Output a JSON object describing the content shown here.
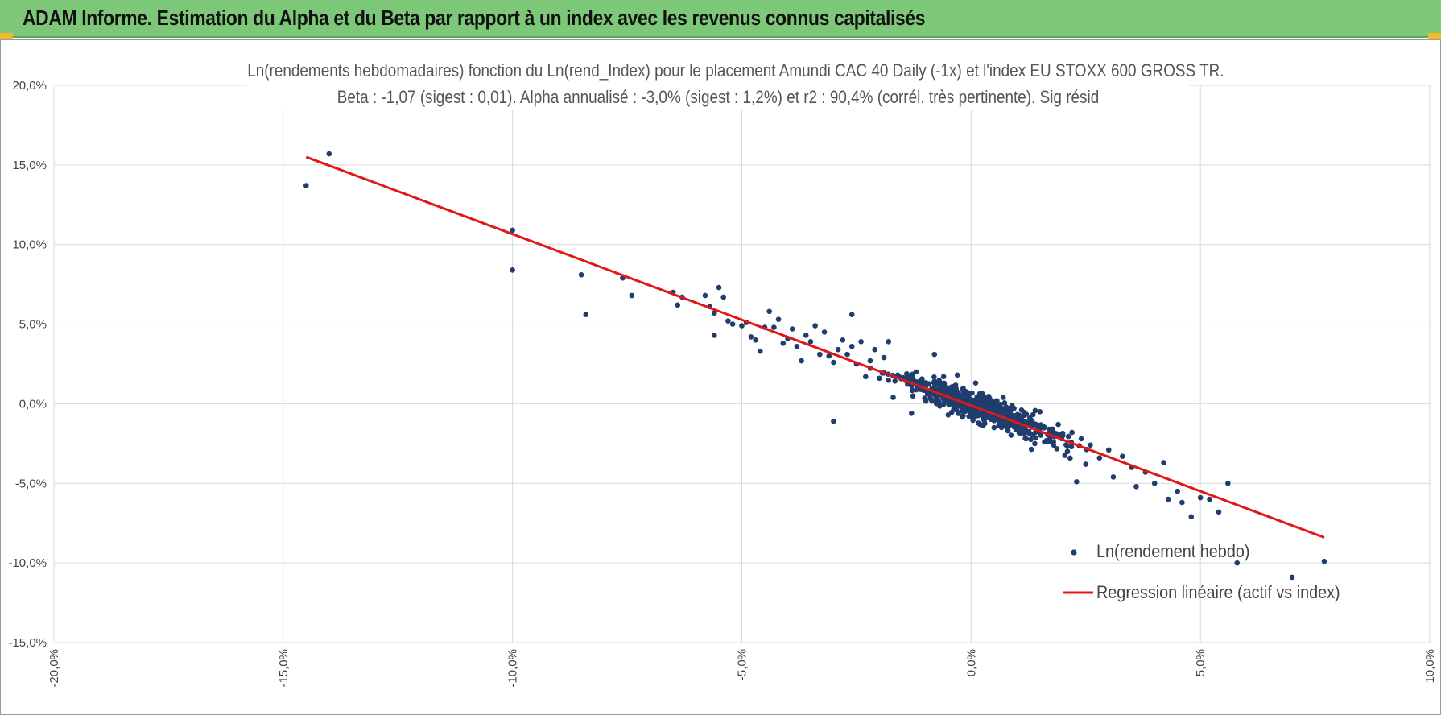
{
  "banner": {
    "title": "ADAM Informe. Estimation du Alpha et du Beta par rapport à un index avec les revenus connus capitalisés"
  },
  "colors": {
    "banner_bg": "#7dc878",
    "points": "#1f3d6d",
    "regression": "#e01818",
    "grid": "#d9d9d9"
  },
  "chart_data": {
    "type": "scatter",
    "title_line1": "Ln(rendements hebdomadaires) fonction du Ln(rend_Index) pour le placement Amundi CAC 40 Daily (-1x) et l'index EU STOXX 600 GROSS TR.",
    "title_line2": "Beta : -1,07 (sigest : 0,01). Alpha annualisé : -3,0% (sigest : 1,2%) et r2 : 90,4% (corrél. très pertinente). Sig résid",
    "xlim": [
      -20,
      10
    ],
    "ylim": [
      -15,
      20
    ],
    "x_ticks": [
      -20,
      -15,
      -10,
      -5,
      0,
      5,
      10
    ],
    "x_tick_labels": [
      "-20,0%",
      "-15,0%",
      "-10,0%",
      "-5,0%",
      "0,0%",
      "5,0%",
      "10,0%"
    ],
    "y_ticks": [
      20,
      15,
      10,
      5,
      0,
      -5,
      -10,
      -15
    ],
    "y_tick_labels": [
      "20,0%",
      "15,0%",
      "10,0%",
      "5,0%",
      "0,0%",
      "-5,0%",
      "-10,0%",
      "-15,0%"
    ],
    "grid": true,
    "legend_position": "bottom-right",
    "series": [
      {
        "name": "Ln(rendement hebdo)",
        "kind": "scatter",
        "points": [
          [
            -14.5,
            13.7
          ],
          [
            -14.0,
            15.7
          ],
          [
            -10.0,
            10.9
          ],
          [
            -10.0,
            8.4
          ],
          [
            -8.5,
            8.1
          ],
          [
            -8.4,
            5.6
          ],
          [
            -7.6,
            7.9
          ],
          [
            -7.4,
            6.8
          ],
          [
            -6.5,
            7.0
          ],
          [
            -6.4,
            6.2
          ],
          [
            -6.3,
            6.7
          ],
          [
            -5.8,
            6.8
          ],
          [
            -5.7,
            6.1
          ],
          [
            -5.6,
            5.7
          ],
          [
            -5.6,
            4.3
          ],
          [
            -5.5,
            7.3
          ],
          [
            -5.4,
            6.7
          ],
          [
            -5.3,
            5.2
          ],
          [
            -5.2,
            5.0
          ],
          [
            -5.0,
            4.9
          ],
          [
            -4.9,
            5.1
          ],
          [
            -4.8,
            4.2
          ],
          [
            -4.7,
            4.0
          ],
          [
            -4.6,
            3.3
          ],
          [
            -4.5,
            4.8
          ],
          [
            -4.4,
            5.8
          ],
          [
            -4.3,
            4.8
          ],
          [
            -4.2,
            5.3
          ],
          [
            -4.1,
            3.8
          ],
          [
            -4.0,
            4.1
          ],
          [
            -3.9,
            4.7
          ],
          [
            -3.8,
            3.6
          ],
          [
            -3.7,
            2.7
          ],
          [
            -3.6,
            4.3
          ],
          [
            -3.5,
            3.9
          ],
          [
            -3.4,
            4.9
          ],
          [
            -3.3,
            3.1
          ],
          [
            -3.2,
            4.5
          ],
          [
            -3.1,
            3.0
          ],
          [
            -3.0,
            2.6
          ],
          [
            -3.0,
            -1.1
          ],
          [
            -2.9,
            3.4
          ],
          [
            -2.8,
            4.0
          ],
          [
            -2.7,
            3.1
          ],
          [
            -2.6,
            3.6
          ],
          [
            -2.6,
            5.6
          ],
          [
            -2.5,
            2.5
          ],
          [
            -2.4,
            3.9
          ],
          [
            -2.3,
            1.7
          ],
          [
            -2.2,
            2.7
          ],
          [
            -2.1,
            3.4
          ],
          [
            -2.0,
            1.6
          ],
          [
            -1.9,
            2.9
          ],
          [
            -1.8,
            3.9
          ],
          [
            -1.7,
            0.4
          ],
          [
            -1.6,
            1.8
          ],
          [
            -1.4,
            1.6
          ],
          [
            -1.3,
            -0.6
          ],
          [
            -1.2,
            2.0
          ],
          [
            -1.1,
            0.9
          ],
          [
            -1.0,
            1.2
          ],
          [
            -0.9,
            0.6
          ],
          [
            -0.8,
            3.1
          ],
          [
            -0.8,
            1.4
          ],
          [
            -0.7,
            0.2
          ],
          [
            -0.6,
            1.7
          ],
          [
            -0.5,
            -0.7
          ],
          [
            -0.4,
            0.5
          ],
          [
            -0.3,
            1.8
          ],
          [
            -0.2,
            0.1
          ],
          [
            -0.1,
            0.4
          ],
          [
            0.0,
            -0.3
          ],
          [
            0.1,
            1.3
          ],
          [
            0.2,
            -1.3
          ],
          [
            0.3,
            0.2
          ],
          [
            0.4,
            -0.6
          ],
          [
            0.5,
            -1.5
          ],
          [
            0.6,
            -0.9
          ],
          [
            0.7,
            0.4
          ],
          [
            0.8,
            -1.7
          ],
          [
            0.9,
            -0.8
          ],
          [
            1.0,
            -1.2
          ],
          [
            1.1,
            -0.4
          ],
          [
            1.2,
            -2.2
          ],
          [
            1.3,
            -1.0
          ],
          [
            1.4,
            -1.8
          ],
          [
            1.5,
            -0.5
          ],
          [
            1.6,
            -2.4
          ],
          [
            1.7,
            -1.6
          ],
          [
            1.8,
            -2.6
          ],
          [
            1.9,
            -1.3
          ],
          [
            2.0,
            -2.0
          ],
          [
            2.1,
            -3.0
          ],
          [
            2.2,
            -1.8
          ],
          [
            2.3,
            -4.9
          ],
          [
            2.4,
            -2.2
          ],
          [
            2.5,
            -3.8
          ],
          [
            2.6,
            -2.6
          ],
          [
            2.8,
            -3.4
          ],
          [
            3.0,
            -2.9
          ],
          [
            3.1,
            -4.6
          ],
          [
            3.3,
            -3.3
          ],
          [
            3.5,
            -4.0
          ],
          [
            3.6,
            -5.2
          ],
          [
            3.8,
            -4.3
          ],
          [
            4.0,
            -5.0
          ],
          [
            4.2,
            -3.7
          ],
          [
            4.3,
            -6.0
          ],
          [
            4.5,
            -5.5
          ],
          [
            4.6,
            -6.2
          ],
          [
            4.8,
            -7.1
          ],
          [
            5.0,
            -5.9
          ],
          [
            5.2,
            -6.0
          ],
          [
            5.4,
            -6.8
          ],
          [
            5.6,
            -5.0
          ],
          [
            5.8,
            -10.0
          ],
          [
            7.0,
            -10.9
          ],
          [
            7.7,
            -9.9
          ]
        ]
      },
      {
        "name": "Regression linéaire (actif vs index)",
        "kind": "line",
        "points": [
          [
            -14.5,
            15.5
          ],
          [
            7.7,
            -8.4
          ]
        ]
      }
    ]
  }
}
